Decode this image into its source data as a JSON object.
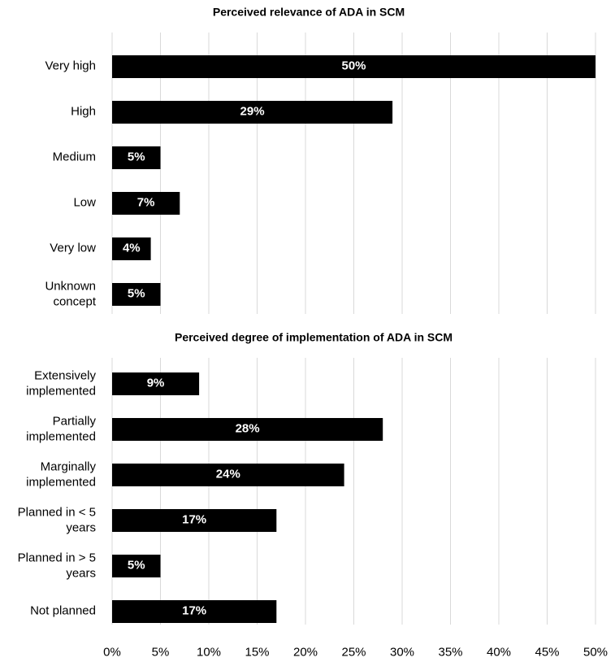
{
  "chart_data": [
    {
      "type": "hbar",
      "title": "Perceived relevance of ADA in SCM",
      "categories": [
        "Very high",
        "High",
        "Medium",
        "Low",
        "Very low",
        "Unknown concept"
      ],
      "values": [
        50,
        29,
        5,
        7,
        4,
        5
      ],
      "value_labels": [
        "50%",
        "29%",
        "5%",
        "7%",
        "4%",
        "5%"
      ],
      "color": "#000000",
      "grid": true,
      "xlim": [
        0,
        50
      ],
      "xticks": [
        0,
        5,
        10,
        15,
        20,
        25,
        30,
        35,
        40,
        45,
        50
      ]
    },
    {
      "type": "hbar",
      "title": "Perceived degree of implementation of ADA in SCM",
      "categories": [
        "Extensively implemented",
        "Partially implemented",
        "Marginally implemented",
        "Planned in < 5 years",
        "Planned in > 5 years",
        "Not planned"
      ],
      "values": [
        9,
        28,
        24,
        17,
        5,
        17
      ],
      "value_labels": [
        "9%",
        "28%",
        "24%",
        "17%",
        "5%",
        "17%"
      ],
      "color": "#000000",
      "grid": true,
      "xlim": [
        0,
        50
      ],
      "xticks": [
        {
          "value": 0,
          "label": "0%"
        },
        {
          "value": 5,
          "label": "5%"
        },
        {
          "value": 10,
          "label": "10%"
        },
        {
          "value": 15,
          "label": "15%"
        },
        {
          "value": 20,
          "label": "20%"
        },
        {
          "value": 25,
          "label": "25%"
        },
        {
          "value": 30,
          "label": "30%"
        },
        {
          "value": 35,
          "label": "35%"
        },
        {
          "value": 40,
          "label": "40%"
        },
        {
          "value": 45,
          "label": "45%"
        },
        {
          "value": 50,
          "label": "50%"
        }
      ]
    }
  ]
}
